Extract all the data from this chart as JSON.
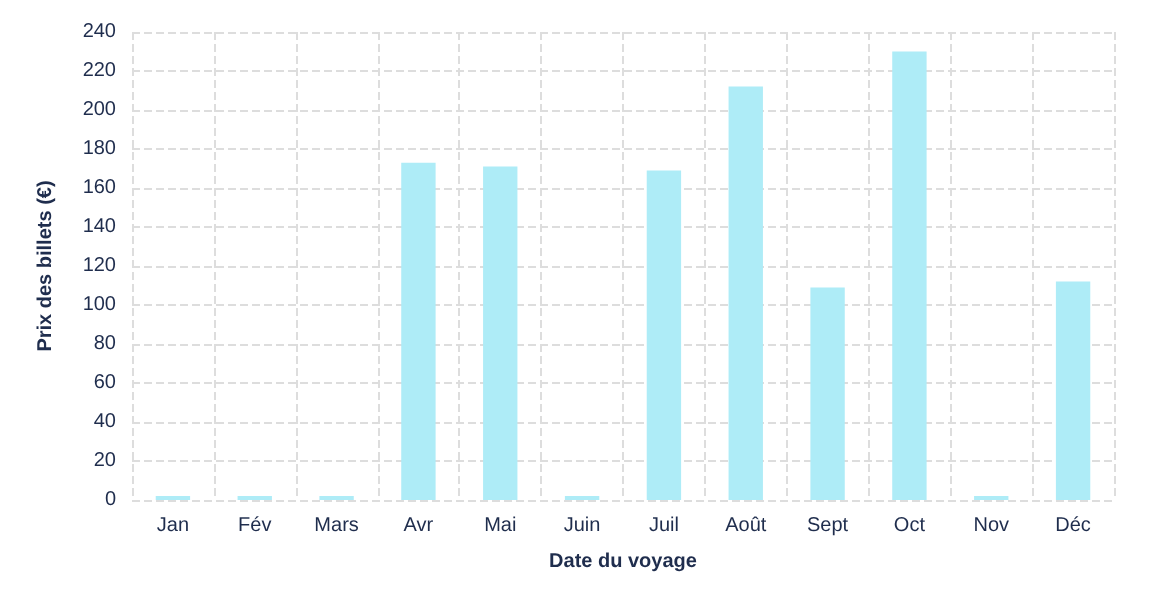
{
  "chart_data": {
    "type": "bar",
    "xlabel": "Date du voyage",
    "ylabel": "Prix des billets (€)",
    "categories": [
      "Jan",
      "Fév",
      "Mars",
      "Avr",
      "Mai",
      "Juin",
      "Juil",
      "Août",
      "Sept",
      "Oct",
      "Nov",
      "Déc"
    ],
    "values": [
      0,
      0,
      0,
      173,
      171,
      0,
      169,
      212,
      109,
      230,
      0,
      112
    ],
    "color": "#aeecf7",
    "ylim": [
      0,
      240
    ],
    "yticks": [
      0,
      20,
      40,
      60,
      80,
      100,
      120,
      140,
      160,
      180,
      200,
      220,
      240
    ],
    "grid": true
  }
}
